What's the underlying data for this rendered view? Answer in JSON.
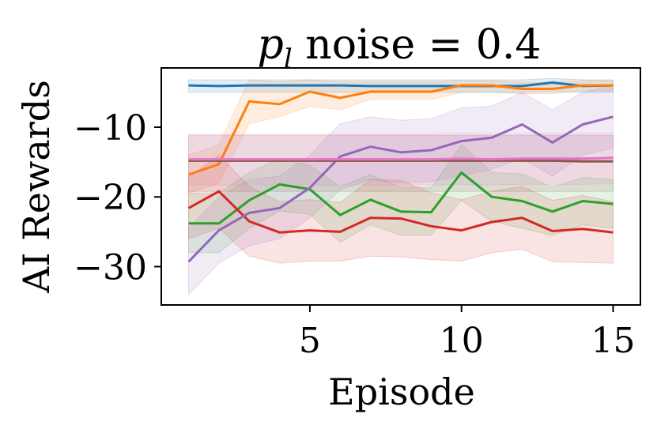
{
  "chart_data": {
    "type": "line",
    "title": "p_l noise = 0.4",
    "title_main": "p",
    "title_sub": "l",
    "title_rest": " noise = 0.4",
    "xlabel": "Episode",
    "ylabel": "AI Rewards",
    "xlim": [
      0.1,
      15.9
    ],
    "ylim": [
      -35.5,
      -1.5
    ],
    "xticks": [
      5,
      10,
      15
    ],
    "xtick_labels": [
      "5",
      "10",
      "15"
    ],
    "yticks": [
      -10,
      -20,
      -30
    ],
    "ytick_labels": [
      "−10",
      "−20",
      "−30"
    ],
    "grid": false,
    "x": [
      1,
      2,
      3,
      4,
      5,
      6,
      7,
      8,
      9,
      10,
      11,
      12,
      13,
      14,
      15
    ],
    "series": [
      {
        "name": "blue",
        "color": "#1f77b4",
        "values": [
          -4.0,
          -4.1,
          -4.0,
          -4.0,
          -4.0,
          -4.0,
          -4.1,
          -4.1,
          -4.1,
          -4.1,
          -4.1,
          -4.1,
          -3.6,
          -4.1,
          -4.0
        ],
        "lower": [
          -5.0,
          -5.0,
          -5.0,
          -5.0,
          -5.0,
          -5.0,
          -5.0,
          -5.0,
          -5.0,
          -5.0,
          -5.0,
          -5.0,
          -4.9,
          -5.0,
          -5.0
        ],
        "upper": [
          -3.2,
          -3.2,
          -3.2,
          -3.2,
          -3.2,
          -3.2,
          -3.2,
          -3.2,
          -3.2,
          -3.2,
          -3.2,
          -3.2,
          -3.0,
          -3.2,
          -3.2
        ]
      },
      {
        "name": "orange",
        "color": "#ff7f0e",
        "values": [
          -16.8,
          -15.3,
          -6.3,
          -6.7,
          -4.9,
          -5.8,
          -4.9,
          -4.9,
          -4.9,
          -4.0,
          -4.0,
          -4.5,
          -4.5,
          -4.0,
          -4.0
        ],
        "lower": [
          -19.5,
          -18.0,
          -9.5,
          -8.5,
          -7.0,
          -7.5,
          -6.0,
          -6.0,
          -6.0,
          -5.0,
          -5.0,
          -5.2,
          -5.2,
          -4.8,
          -4.8
        ],
        "upper": [
          -14.0,
          -12.5,
          -3.2,
          -3.5,
          -3.2,
          -3.5,
          -3.5,
          -3.5,
          -3.5,
          -3.3,
          -3.3,
          -3.6,
          -3.6,
          -3.3,
          -3.3
        ]
      },
      {
        "name": "green",
        "color": "#2ca02c",
        "values": [
          -23.8,
          -23.8,
          -20.5,
          -18.2,
          -18.9,
          -22.6,
          -20.4,
          -22.1,
          -22.2,
          -16.5,
          -20.0,
          -20.6,
          -22.1,
          -20.6,
          -21.0
        ],
        "lower": [
          -28.0,
          -28.0,
          -24.5,
          -22.0,
          -22.5,
          -26.5,
          -24.0,
          -25.5,
          -25.5,
          -20.5,
          -23.5,
          -24.5,
          -25.5,
          -24.0,
          -24.5
        ],
        "upper": [
          -19.5,
          -19.5,
          -16.5,
          -14.5,
          -15.5,
          -18.5,
          -16.8,
          -18.6,
          -18.7,
          -12.5,
          -16.5,
          -16.7,
          -18.6,
          -17.2,
          -17.5
        ]
      },
      {
        "name": "red",
        "color": "#d62728",
        "values": [
          -21.6,
          -19.2,
          -23.5,
          -25.1,
          -24.8,
          -25.0,
          -23.0,
          -23.1,
          -24.2,
          -24.8,
          -23.6,
          -23.0,
          -24.9,
          -24.6,
          -25.1
        ],
        "lower": [
          -26.0,
          -24.5,
          -28.5,
          -29.5,
          -29.2,
          -29.2,
          -28.5,
          -28.6,
          -29.0,
          -29.2,
          -28.0,
          -27.5,
          -29.3,
          -29.4,
          -29.5
        ],
        "upper": [
          -17.2,
          -14.0,
          -18.5,
          -20.7,
          -20.4,
          -20.8,
          -17.5,
          -17.6,
          -19.4,
          -20.4,
          -19.2,
          -18.5,
          -20.5,
          -19.8,
          -20.7
        ]
      },
      {
        "name": "purple",
        "color": "#9467bd",
        "values": [
          -29.3,
          -24.8,
          -22.3,
          -21.6,
          -18.7,
          -14.2,
          -12.8,
          -13.6,
          -13.3,
          -12.0,
          -11.5,
          -9.6,
          -12.2,
          -9.6,
          -8.5
        ],
        "lower": [
          -34.0,
          -29.5,
          -27.0,
          -26.0,
          -23.0,
          -19.0,
          -17.5,
          -18.0,
          -17.8,
          -17.0,
          -16.0,
          -14.5,
          -17.0,
          -14.0,
          -13.0
        ],
        "upper": [
          -24.5,
          -20.0,
          -17.5,
          -17.0,
          -14.0,
          -9.5,
          -8.5,
          -9.0,
          -8.8,
          -7.2,
          -7.0,
          -5.0,
          -7.5,
          -5.0,
          -4.0
        ]
      },
      {
        "name": "brown",
        "color": "#8c564b",
        "values": [
          -14.8,
          -14.8,
          -14.8,
          -14.8,
          -14.8,
          -14.8,
          -14.8,
          -14.8,
          -14.8,
          -14.8,
          -14.8,
          -14.8,
          -14.8,
          -14.9,
          -14.9
        ],
        "lower": [
          -19.2,
          -19.2,
          -19.2,
          -19.2,
          -19.2,
          -19.2,
          -19.2,
          -19.2,
          -19.2,
          -19.2,
          -19.2,
          -19.2,
          -19.2,
          -19.2,
          -19.2
        ],
        "upper": [
          -11.2,
          -11.2,
          -11.2,
          -11.2,
          -11.2,
          -11.2,
          -11.2,
          -11.2,
          -11.2,
          -11.2,
          -11.2,
          -11.2,
          -11.2,
          -11.2,
          -11.2
        ]
      },
      {
        "name": "pink",
        "color": "#e377c2",
        "values": [
          -14.6,
          -14.6,
          -14.6,
          -14.6,
          -14.6,
          -14.6,
          -14.6,
          -14.6,
          -14.6,
          -14.5,
          -14.6,
          -14.5,
          -14.5,
          -14.5,
          -14.4
        ],
        "lower": [
          -18.3,
          -18.3,
          -18.3,
          -18.3,
          -18.3,
          -18.3,
          -18.3,
          -18.3,
          -18.3,
          -18.2,
          -18.3,
          -18.2,
          -18.2,
          -18.2,
          -18.1
        ],
        "upper": [
          -11.0,
          -11.0,
          -11.0,
          -11.0,
          -11.0,
          -11.0,
          -11.0,
          -11.0,
          -11.0,
          -10.9,
          -11.0,
          -10.9,
          -10.9,
          -10.9,
          -10.8
        ]
      }
    ]
  }
}
